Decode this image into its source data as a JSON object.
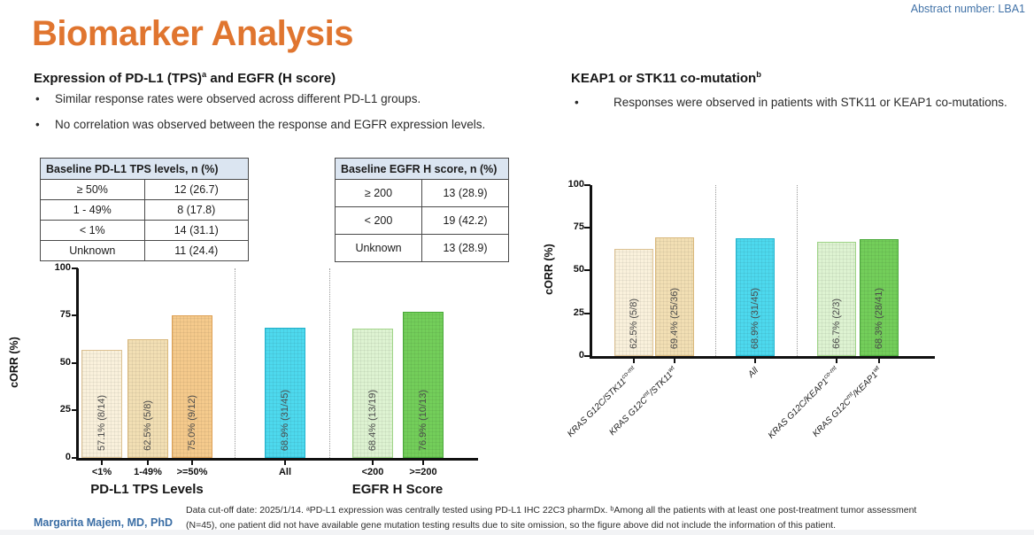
{
  "slide": {
    "abstract_number": "Abstract number: LBA1",
    "title": "Biomarker Analysis",
    "author": "Margarita Majem, MD, PhD",
    "footnote_line1": "Data cut-off date: 2025/1/14. ᵃPD-L1 expression was centrally tested using PD-L1 IHC 22C3 pharmDx. ᵇAmong all the patients with at least one post-treatment tumor assessment",
    "footnote_line2": "(N=45), one patient did not have available gene mutation testing results due to site omission, so the figure above did not include the information of this patient."
  },
  "left_section": {
    "heading_base": "Expression of PD-L1 (TPS)",
    "heading_sup": "a",
    "heading_rest": " and EGFR (H score)",
    "bullets": [
      "Similar response rates were observed across different PD-L1 groups.",
      "No correlation was observed between the response and EGFR expression levels."
    ],
    "tables": [
      {
        "header": "Baseline PD-L1 TPS levels, n (%)",
        "rows": [
          [
            "≥ 50%",
            "12 (26.7)"
          ],
          [
            "1 - 49%",
            "8 (17.8)"
          ],
          [
            "< 1%",
            "14 (31.1)"
          ],
          [
            "Unknown",
            "11 (24.4)"
          ]
        ]
      },
      {
        "header": "Baseline EGFR H score, n (%)",
        "rows": [
          [
            "≥ 200",
            "13 (28.9)"
          ],
          [
            "< 200",
            "19 (42.2)"
          ],
          [
            "Unknown",
            "13 (28.9)"
          ]
        ]
      }
    ]
  },
  "right_section": {
    "heading_base": "KEAP1 or STK11 co-mutation",
    "heading_sup": "b",
    "bullets": [
      "Responses were observed in patients with STK11 or KEAP1 co-mutations."
    ]
  },
  "chart_data": [
    {
      "id": "pdl1-egfr-corr",
      "type": "bar",
      "title": "",
      "ylabel": "cORR (%)",
      "xlabel": "",
      "ylim": [
        0,
        100
      ],
      "yticks": [
        "0",
        "25",
        "50",
        "75",
        "100"
      ],
      "grid": false,
      "group_labels": [
        "PD-L1 TPS Levels",
        "EGFR H Score"
      ],
      "bars": [
        {
          "label": "<1%",
          "value": 57.1,
          "text": "57.1% (8/14)",
          "color": "#faf1dc",
          "border": "#dcc193"
        },
        {
          "label": "1-49%",
          "value": 62.5,
          "text": "62.5% (5/8)",
          "color": "#f2dfb4",
          "border": "#d9b87c"
        },
        {
          "label": ">=50%",
          "value": 75.0,
          "text": "75.0% (9/12)",
          "color": "#f5ca8c",
          "border": "#dda055"
        },
        {
          "label": "All",
          "value": 68.9,
          "text": "68.9% (31/45)",
          "color": "#4dd9ee",
          "border": "#21b2cd"
        },
        {
          "label": "<200",
          "value": 68.4,
          "text": "68.4% (13/19)",
          "color": "#def3d2",
          "border": "#a0d489"
        },
        {
          "label": ">=200",
          "value": 76.9,
          "text": "76.9% (10/13)",
          "color": "#73ce5a",
          "border": "#4aa93a"
        }
      ]
    },
    {
      "id": "keap1-stk11-corr",
      "type": "bar",
      "title": "",
      "ylabel": "cORR (%)",
      "xlabel": "",
      "ylim": [
        0,
        100
      ],
      "yticks": [
        "0",
        "25",
        "50",
        "75",
        "100"
      ],
      "grid": false,
      "bars": [
        {
          "label_parts": [
            "KRAS G12C/STK11",
            "co-mt",
            "",
            ""
          ],
          "value": 62.5,
          "text": "62.5% (5/8)",
          "color": "#faf1dc",
          "border": "#dcc193"
        },
        {
          "label_parts": [
            "KRAS G12C",
            "mt",
            "/STK11",
            "wt"
          ],
          "value": 69.4,
          "text": "69.4% (25/36)",
          "color": "#f2dfb4",
          "border": "#d9b87c"
        },
        {
          "label_parts": [
            "All",
            "",
            "",
            ""
          ],
          "value": 68.9,
          "text": "68.9% (31/45)",
          "color": "#4dd9ee",
          "border": "#21b2cd"
        },
        {
          "label_parts": [
            "KRAS G12C/KEAP1",
            "co-mt",
            "",
            ""
          ],
          "value": 66.7,
          "text": "66.7% (2/3)",
          "color": "#def3d2",
          "border": "#a0d489"
        },
        {
          "label_parts": [
            "KRAS G12C",
            "mt",
            "/KEAP1",
            "wt"
          ],
          "value": 68.3,
          "text": "68.3% (28/41)",
          "color": "#73ce5a",
          "border": "#4aa93a"
        }
      ]
    }
  ]
}
